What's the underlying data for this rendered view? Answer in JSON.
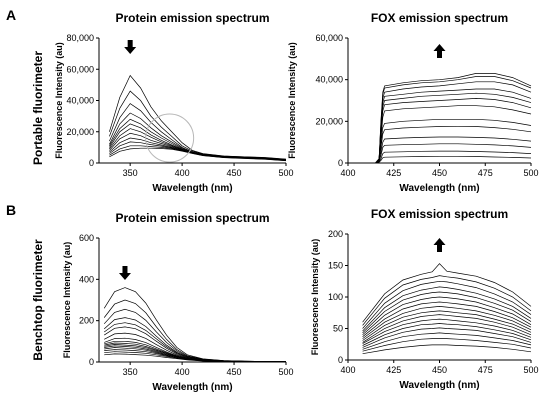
{
  "panel_labels": [
    "A",
    "B"
  ],
  "row_labels": [
    "Portable fluorimeter",
    "Benchtop fluorimeter"
  ],
  "chart_data": [
    {
      "type": "line",
      "title": "Protein emission spectrum",
      "xlabel": "Wavelength (nm)",
      "ylabel": "Fluorescence Intensity (au)",
      "xlim": [
        320,
        500
      ],
      "ylim": [
        0,
        80000
      ],
      "xticks": [
        350,
        400,
        450,
        500
      ],
      "yticks": [
        0,
        20000,
        40000,
        60000,
        80000
      ],
      "yticklabels": [
        "0",
        "20,000",
        "40,000",
        "60,000",
        "80,000"
      ],
      "arrow": "down",
      "annotation": "circle",
      "x": [
        330,
        340,
        350,
        360,
        370,
        380,
        390,
        400,
        410,
        420,
        440,
        460,
        480,
        500
      ],
      "series": [
        {
          "values": [
            20000,
            42000,
            56000,
            48000,
            36000,
            27000,
            20000,
            13000,
            8000,
            6000,
            4500,
            4000,
            3500,
            2500
          ]
        },
        {
          "values": [
            17000,
            35000,
            46000,
            40000,
            30000,
            23000,
            17000,
            11000,
            7500,
            5800,
            4400,
            3900,
            3400,
            2400
          ]
        },
        {
          "values": [
            14000,
            29000,
            38000,
            33500,
            26000,
            20000,
            15000,
            10000,
            7000,
            5600,
            4300,
            3800,
            3300,
            2300
          ]
        },
        {
          "values": [
            12000,
            25000,
            32000,
            28500,
            22500,
            17500,
            13500,
            9500,
            7000,
            5500,
            4200,
            3700,
            3200,
            2200
          ]
        },
        {
          "values": [
            11000,
            22000,
            28000,
            25000,
            20000,
            16000,
            12500,
            9000,
            6800,
            5400,
            4100,
            3600,
            3100,
            2100
          ]
        },
        {
          "values": [
            10000,
            20000,
            25000,
            22500,
            18000,
            14500,
            11500,
            8800,
            6700,
            5300,
            4000,
            3500,
            3000,
            2000
          ]
        },
        {
          "values": [
            9000,
            17500,
            22000,
            20000,
            16500,
            13500,
            11000,
            8600,
            6600,
            5200,
            3900,
            3400,
            2900,
            1900
          ]
        },
        {
          "values": [
            8000,
            15500,
            19000,
            17500,
            14500,
            12500,
            10500,
            8400,
            6500,
            5100,
            3800,
            3300,
            2800,
            1800
          ]
        },
        {
          "values": [
            7000,
            13000,
            16000,
            15000,
            13000,
            11500,
            10000,
            8200,
            6400,
            5000,
            3700,
            3200,
            2700,
            1700
          ]
        },
        {
          "values": [
            6000,
            11000,
            13500,
            13000,
            11800,
            10800,
            9600,
            8000,
            6300,
            4900,
            3600,
            3100,
            2600,
            1600
          ]
        },
        {
          "values": [
            5000,
            9000,
            11000,
            11000,
            10500,
            10000,
            9200,
            7800,
            6200,
            4800,
            3500,
            3000,
            2500,
            1500
          ]
        },
        {
          "values": [
            4000,
            7500,
            9000,
            9500,
            9500,
            9300,
            8800,
            7600,
            6100,
            4700,
            3400,
            2900,
            2400,
            1400
          ]
        }
      ]
    },
    {
      "type": "line",
      "title": "FOX emission spectrum",
      "xlabel": "Wavelength (nm)",
      "ylabel": "Fluorescence Intensity (au)",
      "xlim": [
        400,
        500
      ],
      "ylim": [
        0,
        60000
      ],
      "xticks": [
        400,
        425,
        450,
        475,
        500
      ],
      "yticks": [
        0,
        20000,
        40000,
        60000
      ],
      "yticklabels": [
        "0",
        "20,000",
        "40,000",
        "60,000"
      ],
      "arrow": "up",
      "x": [
        415,
        417,
        418,
        419,
        420,
        430,
        440,
        450,
        460,
        470,
        480,
        490,
        500
      ],
      "series": [
        {
          "values": [
            0,
            2000,
            20000,
            34000,
            37000,
            38500,
            39500,
            40000,
            41000,
            43000,
            43000,
            41000,
            37000
          ]
        },
        {
          "values": [
            0,
            2000,
            19000,
            33000,
            36000,
            37500,
            38500,
            39000,
            40000,
            41500,
            41500,
            39500,
            36000
          ]
        },
        {
          "values": [
            0,
            2000,
            18000,
            31000,
            34000,
            35500,
            36500,
            37000,
            38000,
            39000,
            39000,
            37500,
            34000
          ]
        },
        {
          "values": [
            0,
            2000,
            16000,
            29000,
            32000,
            33000,
            34000,
            34500,
            35000,
            35500,
            35500,
            34000,
            31000
          ]
        },
        {
          "values": [
            0,
            2000,
            15000,
            27000,
            30000,
            31000,
            32000,
            32500,
            33000,
            33500,
            33000,
            31500,
            29000
          ]
        },
        {
          "values": [
            0,
            1800,
            13000,
            25000,
            28000,
            29000,
            29500,
            30000,
            30500,
            31000,
            30500,
            29000,
            26500
          ]
        },
        {
          "values": [
            0,
            1600,
            11000,
            22000,
            25000,
            26000,
            26500,
            27000,
            27500,
            27500,
            27000,
            25500,
            23500
          ]
        },
        {
          "values": [
            0,
            1400,
            9000,
            17000,
            19000,
            20000,
            20500,
            21000,
            21000,
            21000,
            20500,
            19500,
            18000
          ]
        },
        {
          "values": [
            0,
            1200,
            7000,
            14000,
            16000,
            16800,
            17200,
            17500,
            17600,
            17500,
            17000,
            16200,
            15000
          ]
        },
        {
          "values": [
            0,
            1000,
            5000,
            10000,
            11500,
            12000,
            12300,
            12500,
            12500,
            12300,
            12000,
            11400,
            10500
          ]
        },
        {
          "values": [
            0,
            800,
            3500,
            7500,
            8500,
            8800,
            9000,
            9200,
            9200,
            9000,
            8700,
            8200,
            7500
          ]
        },
        {
          "values": [
            0,
            600,
            2000,
            4500,
            5200,
            5400,
            5600,
            5700,
            5700,
            5500,
            5300,
            5000,
            4500
          ]
        },
        {
          "values": [
            0,
            400,
            1200,
            2500,
            2800,
            3000,
            3100,
            3200,
            3200,
            3100,
            2900,
            2700,
            2400
          ]
        }
      ]
    },
    {
      "type": "line",
      "title": "Protein emission spectrum",
      "xlabel": "Wavelength (nm)",
      "ylabel": "Fluorescence Intensity (au)",
      "xlim": [
        320,
        500
      ],
      "ylim": [
        0,
        600
      ],
      "xticks": [
        350,
        400,
        450,
        500
      ],
      "yticks": [
        0,
        200,
        400,
        600
      ],
      "yticklabels": [
        "0",
        "200",
        "400",
        "600"
      ],
      "arrow": "down",
      "x": [
        325,
        335,
        345,
        355,
        365,
        375,
        385,
        395,
        405,
        420,
        440,
        460,
        480,
        500
      ],
      "series": [
        {
          "values": [
            260,
            340,
            360,
            340,
            285,
            205,
            130,
            70,
            35,
            15,
            7,
            4,
            3,
            2
          ]
        },
        {
          "values": [
            215,
            280,
            300,
            283,
            238,
            172,
            110,
            60,
            30,
            14,
            7,
            4,
            3,
            2
          ]
        },
        {
          "values": [
            185,
            240,
            255,
            240,
            202,
            147,
            95,
            53,
            27,
            13,
            6,
            4,
            3,
            2
          ]
        },
        {
          "values": [
            160,
            205,
            215,
            203,
            172,
            126,
            82,
            47,
            25,
            12,
            6,
            4,
            3,
            2
          ]
        },
        {
          "values": [
            145,
            182,
            190,
            180,
            153,
            113,
            74,
            43,
            23,
            11,
            6,
            3,
            2,
            2
          ]
        },
        {
          "values": [
            130,
            163,
            170,
            161,
            137,
            101,
            67,
            39,
            21,
            10,
            5,
            3,
            2,
            2
          ]
        },
        {
          "values": [
            110,
            136,
            140,
            133,
            114,
            85,
            57,
            34,
            19,
            9,
            5,
            3,
            2,
            2
          ]
        },
        {
          "values": [
            95,
            113,
            115,
            109,
            94,
            71,
            49,
            30,
            17,
            8,
            5,
            3,
            2,
            1
          ]
        },
        {
          "values": [
            88,
            100,
            100,
            95,
            83,
            64,
            45,
            28,
            16,
            8,
            4,
            3,
            2,
            1
          ]
        },
        {
          "values": [
            82,
            92,
            90,
            86,
            75,
            59,
            42,
            27,
            15,
            8,
            4,
            3,
            2,
            1
          ]
        },
        {
          "values": [
            76,
            85,
            82,
            78,
            69,
            55,
            40,
            26,
            15,
            7,
            4,
            3,
            2,
            1
          ]
        },
        {
          "values": [
            70,
            78,
            75,
            71,
            63,
            51,
            37,
            25,
            14,
            7,
            4,
            3,
            2,
            1
          ]
        },
        {
          "values": [
            63,
            70,
            67,
            64,
            57,
            46,
            34,
            23,
            13,
            7,
            4,
            2,
            2,
            1
          ]
        },
        {
          "values": [
            55,
            60,
            58,
            55,
            50,
            41,
            31,
            21,
            12,
            6,
            3,
            2,
            2,
            1
          ]
        },
        {
          "values": [
            45,
            50,
            48,
            46,
            42,
            35,
            27,
            19,
            11,
            6,
            3,
            2,
            1,
            1
          ]
        },
        {
          "values": [
            35,
            39,
            38,
            36,
            33,
            28,
            22,
            16,
            10,
            5,
            3,
            2,
            1,
            1
          ]
        }
      ]
    },
    {
      "type": "line",
      "title": "FOX emission spectrum",
      "xlabel": "Wavelength (nm)",
      "ylabel": "Fluorescence Intensity (au)",
      "xlim": [
        400,
        500
      ],
      "ylim": [
        0,
        200
      ],
      "xticks": [
        400,
        425,
        450,
        475,
        500
      ],
      "yticks": [
        0,
        50,
        100,
        150,
        200
      ],
      "yticklabels": [
        "0",
        "50",
        "100",
        "150",
        "200"
      ],
      "arrow": "up",
      "x": [
        408,
        420,
        430,
        440,
        446,
        450,
        454,
        460,
        470,
        480,
        490,
        500
      ],
      "series": [
        {
          "values": [
            60,
            105,
            127,
            136,
            140,
            153,
            141,
            138,
            133,
            123,
            108,
            85
          ]
        },
        {
          "values": [
            55,
            98,
            119,
            128,
            131,
            134,
            132,
            130,
            124,
            114,
            100,
            78
          ]
        },
        {
          "values": [
            50,
            90,
            110,
            120,
            123,
            125,
            124,
            121,
            115,
            105,
            92,
            72
          ]
        },
        {
          "values": [
            46,
            83,
            102,
            111,
            114,
            116,
            115,
            112,
            106,
            97,
            85,
            66
          ]
        },
        {
          "values": [
            43,
            77,
            95,
            104,
            107,
            108,
            107,
            105,
            99,
            90,
            79,
            61
          ]
        },
        {
          "values": [
            40,
            71,
            88,
            96,
            99,
            100,
            99,
            97,
            92,
            83,
            73,
            56
          ]
        },
        {
          "values": [
            37,
            65,
            81,
            89,
            91,
            92,
            91,
            89,
            85,
            77,
            67,
            52
          ]
        },
        {
          "values": [
            34,
            60,
            74,
            82,
            84,
            85,
            84,
            82,
            78,
            71,
            62,
            48
          ]
        },
        {
          "values": [
            31,
            55,
            68,
            75,
            77,
            78,
            77,
            75,
            72,
            65,
            57,
            44
          ]
        },
        {
          "values": [
            28,
            50,
            62,
            69,
            71,
            72,
            71,
            69,
            66,
            60,
            52,
            40
          ]
        },
        {
          "values": [
            26,
            45,
            56,
            62,
            64,
            65,
            64,
            62,
            59,
            54,
            47,
            36
          ]
        },
        {
          "values": [
            23,
            40,
            50,
            56,
            57,
            58,
            57,
            56,
            53,
            48,
            42,
            32
          ]
        },
        {
          "values": [
            20,
            35,
            44,
            49,
            50,
            51,
            50,
            49,
            47,
            42,
            37,
            28
          ]
        },
        {
          "values": [
            17,
            29,
            37,
            41,
            42,
            43,
            42,
            41,
            39,
            35,
            31,
            24
          ]
        },
        {
          "values": [
            14,
            23,
            29,
            33,
            34,
            34,
            34,
            33,
            31,
            28,
            25,
            19
          ]
        },
        {
          "values": [
            10,
            16,
            20,
            23,
            24,
            24,
            24,
            23,
            22,
            20,
            17,
            13
          ]
        }
      ]
    }
  ]
}
